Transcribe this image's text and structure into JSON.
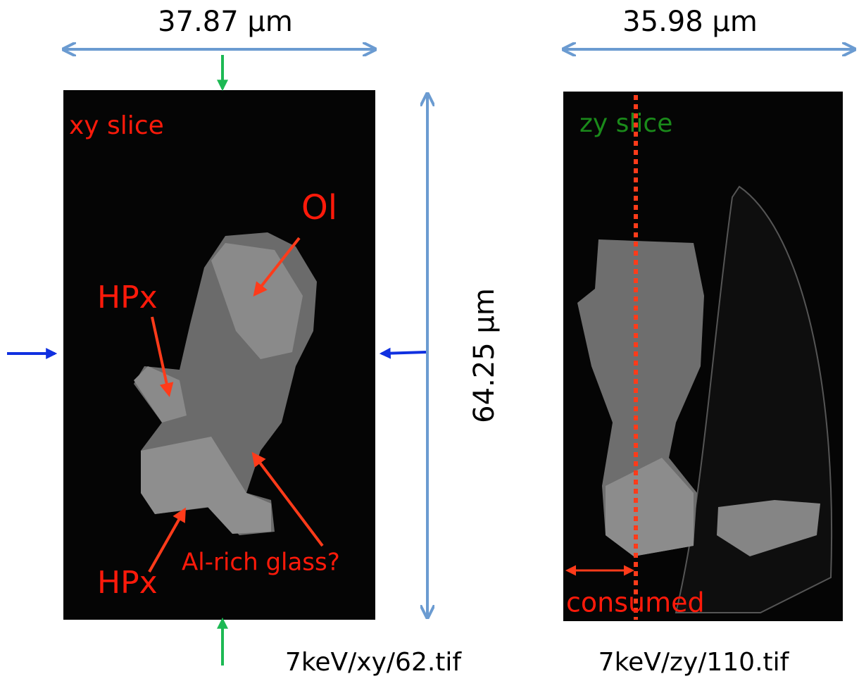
{
  "dimensions": {
    "xy_width": "37.87 µm",
    "zy_width": "35.98 µm",
    "height": "64.25 µm"
  },
  "panels": [
    {
      "label": "xy slice",
      "annotations": [
        "Ol",
        "HPx",
        "HPx",
        "Al-rich glass?"
      ],
      "file": "7keV/xy/62.tif"
    },
    {
      "label": "zy slice",
      "annotations": [
        "consumed"
      ],
      "file": "7keV/zy/110.tif"
    }
  ]
}
